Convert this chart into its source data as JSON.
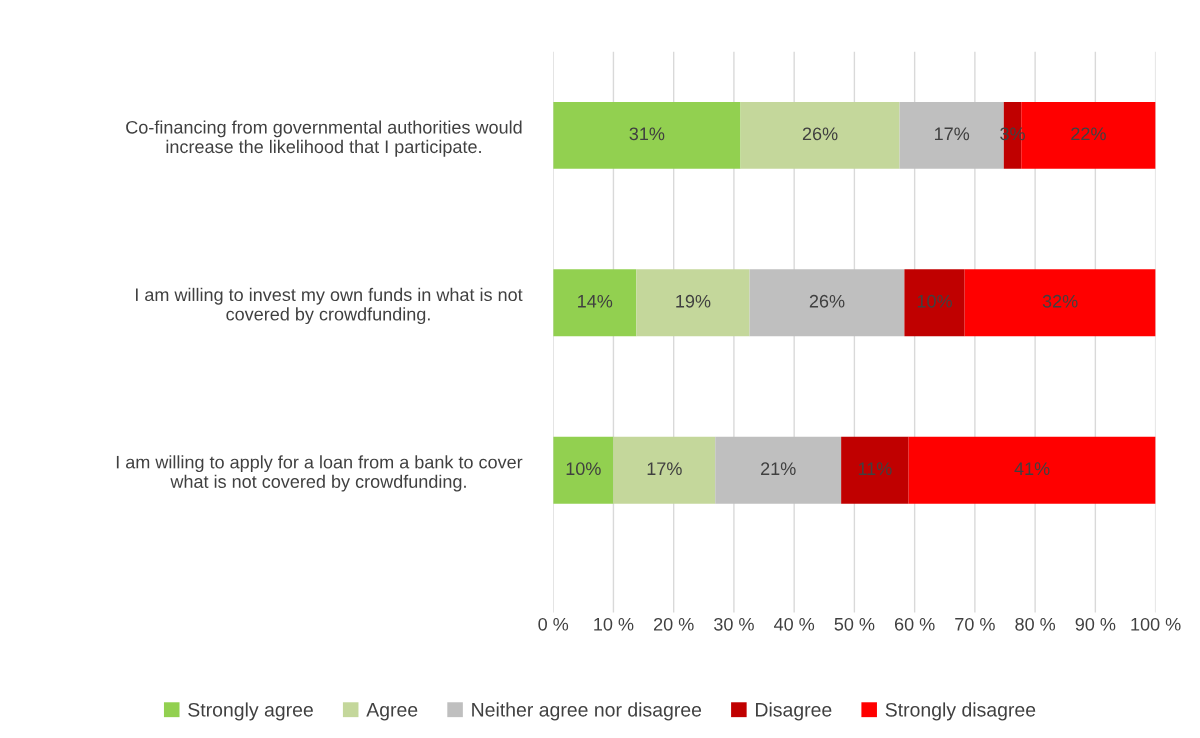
{
  "chart_data": {
    "type": "bar",
    "orientation": "horizontal",
    "stacked": true,
    "categories": [
      "Co-financing from governmental authorities would\nincrease the likelihood that I participate.",
      "I am willing to invest my own funds in what is not\ncovered by crowdfunding.",
      "I am willing to apply for a loan from a bank to cover\nwhat is not covered by crowdfunding."
    ],
    "series": [
      {
        "name": "Strongly agree",
        "color": "#92d050",
        "values": [
          31.1,
          13.8,
          10.0
        ],
        "value_labels": [
          "31%",
          "14%",
          "10%"
        ]
      },
      {
        "name": "Agree",
        "color": "#c4d79b",
        "values": [
          26.4,
          18.8,
          16.9
        ],
        "value_labels": [
          "26%",
          "19%",
          "17%"
        ]
      },
      {
        "name": "Neither agree nor disagree",
        "color": "#bfbfbf",
        "values": [
          17.3,
          25.7,
          20.9
        ],
        "value_labels": [
          "17%",
          "26%",
          "21%"
        ]
      },
      {
        "name": "Disagree",
        "color": "#c00000",
        "values": [
          2.9,
          10.0,
          11.2
        ],
        "value_labels": [
          "3%",
          "10%",
          "11%"
        ]
      },
      {
        "name": "Strongly disagree",
        "color": "#ff0000",
        "values": [
          22.3,
          31.7,
          41.0
        ],
        "value_labels": [
          "22%",
          "32%",
          "41%"
        ]
      }
    ],
    "xlim": [
      0,
      100
    ],
    "xticks": [
      {
        "value": 0,
        "label": "0 %"
      },
      {
        "value": 10,
        "label": "10 %"
      },
      {
        "value": 20,
        "label": "20 %"
      },
      {
        "value": 30,
        "label": "30 %"
      },
      {
        "value": 40,
        "label": "40 %"
      },
      {
        "value": 50,
        "label": "50 %"
      },
      {
        "value": 60,
        "label": "60 %"
      },
      {
        "value": 70,
        "label": "70 %"
      },
      {
        "value": 80,
        "label": "80 %"
      },
      {
        "value": 90,
        "label": "90 %"
      },
      {
        "value": 100,
        "label": "100 %"
      }
    ],
    "grid": "x",
    "legend": "bottom"
  }
}
